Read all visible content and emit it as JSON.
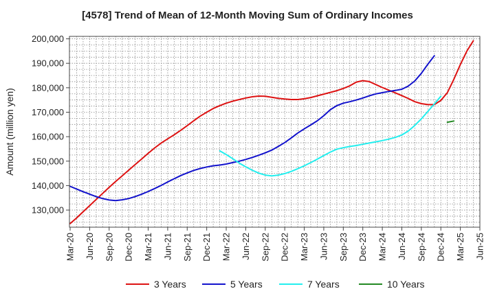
{
  "chart_data": {
    "type": "line",
    "title": "[4578]  Trend of Mean of 12-Month Moving Sum of Ordinary Incomes",
    "xlabel": "",
    "ylabel": "Amount (million yen)",
    "ylim": [
      123000,
      201000
    ],
    "yticks": [
      130000,
      140000,
      150000,
      160000,
      170000,
      180000,
      190000,
      200000
    ],
    "ytick_labels": [
      "130,000",
      "140,000",
      "150,000",
      "160,000",
      "170,000",
      "180,000",
      "190,000",
      "200,000"
    ],
    "xticks": [
      "Mar-20",
      "Jun-20",
      "Sep-20",
      "Dec-20",
      "Mar-21",
      "Jun-21",
      "Sep-21",
      "Dec-21",
      "Mar-22",
      "Jun-22",
      "Sep-22",
      "Dec-22",
      "Mar-23",
      "Jun-23",
      "Sep-23",
      "Dec-23",
      "Mar-24",
      "Jun-24",
      "Sep-24",
      "Dec-24",
      "Mar-25",
      "Jun-25"
    ],
    "grid": true,
    "legend_position": "bottom",
    "series": [
      {
        "name": "3 Years",
        "color": "#dd1111",
        "start": "Mar-20",
        "values": [
          124500,
          126800,
          129300,
          131800,
          134300,
          136800,
          139300,
          141700,
          144000,
          146300,
          148600,
          150900,
          153200,
          155400,
          157400,
          159100,
          160800,
          162600,
          164500,
          166500,
          168400,
          170000,
          171500,
          172700,
          173700,
          174500,
          175200,
          175800,
          176300,
          176600,
          176500,
          176100,
          175700,
          175400,
          175200,
          175200,
          175500,
          176000,
          176700,
          177400,
          178100,
          178800,
          179700,
          180800,
          182300,
          182900,
          182500,
          181300,
          180100,
          179000,
          177900,
          176800,
          175600,
          174300,
          173500,
          173100,
          173100,
          174800,
          178000,
          183500,
          189500,
          195000,
          199200
        ]
      },
      {
        "name": "5 Years",
        "color": "#1111cc",
        "start": "Mar-20",
        "values": [
          139700,
          138600,
          137500,
          136500,
          135500,
          134700,
          134100,
          133900,
          134200,
          134700,
          135500,
          136500,
          137600,
          138800,
          140100,
          141500,
          142800,
          144100,
          145200,
          146200,
          147000,
          147600,
          148100,
          148400,
          148800,
          149400,
          150000,
          150700,
          151500,
          152400,
          153400,
          154500,
          156000,
          157600,
          159500,
          161500,
          163200,
          164800,
          166500,
          168600,
          171000,
          172700,
          173700,
          174300,
          175000,
          175800,
          176700,
          177500,
          178000,
          178500,
          178900,
          179400,
          180700,
          182800,
          185900,
          189600,
          193100
        ]
      },
      {
        "name": "7 Years",
        "color": "#22eeee",
        "start": "Feb-22",
        "values": [
          154200,
          152700,
          151000,
          149200,
          147700,
          146300,
          145100,
          144300,
          144000,
          144300,
          144900,
          145800,
          146900,
          148100,
          149400,
          150800,
          152300,
          153700,
          154900,
          155500,
          156000,
          156400,
          156900,
          157400,
          157900,
          158400,
          159000,
          159700,
          160700,
          162300,
          164600,
          167300,
          170300,
          173400,
          176500
        ]
      },
      {
        "name": "10 Years",
        "color": "#228822",
        "start": "Jan-25",
        "values": [
          165900,
          166400
        ]
      }
    ]
  }
}
